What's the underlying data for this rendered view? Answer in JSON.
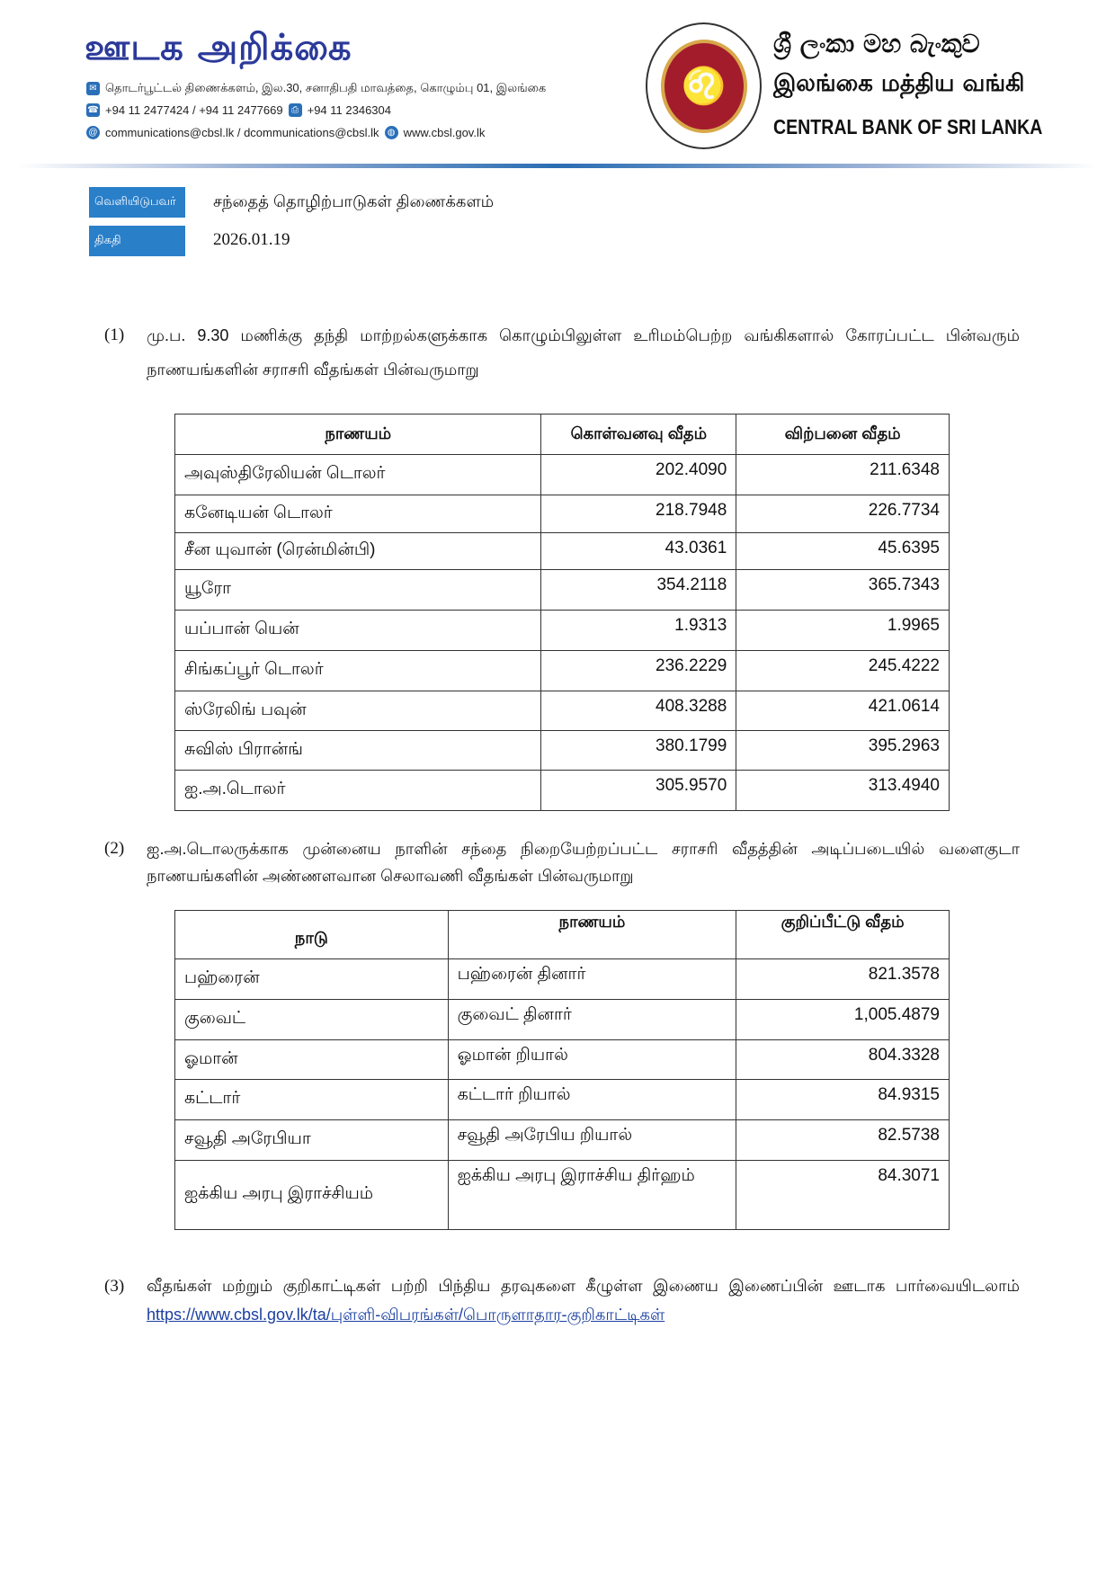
{
  "header": {
    "title": "ஊடக அறிக்கை",
    "address": "தொடர்பூட்டல் திணைக்களம், இல.30, சனாதிபதி மாவத்தை, கொழும்பு 01, இலங்கை",
    "phones": "+94 11 2477424 / +94 11 2477669",
    "fax": "+94 11  2346304",
    "emails": "communications@cbsl.lk / dcommunications@cbsl.lk",
    "website": "www.cbsl.gov.lk",
    "bank_name_sinhala": "ශ්‍රී ලංකා මහ බැංකුව",
    "bank_name_tamil": "இலங்கை மத்திய வங்கி",
    "bank_name_english": "CENTRAL BANK OF SRI LANKA",
    "accent_color": "#2a7fc9"
  },
  "meta": {
    "publisher_label": "வெளியிடுபவர்",
    "publisher_value": "சந்தைத் தொழிற்பாடுகள் திணைக்களம்",
    "date_label": "திகதி",
    "date_value": "2026.01.19"
  },
  "section1": {
    "number": "(1)",
    "text": "மு.ப. 9.30 மணிக்கு தந்தி மாற்றல்களுக்காக கொழும்பிலுள்ள உரிமம்பெற்ற வங்கிகளால் கோரப்பட்ட பின்வரும் நாணயங்களின் சராசரி வீதங்கள் பின்வருமாறு",
    "headers": [
      "நாணயம்",
      "கொள்வனவு வீதம்",
      "விற்பனை வீதம்"
    ],
    "rows": [
      {
        "currency": "அவுஸ்திரேலியன் டொலர்",
        "buy": "202.4090",
        "sell": "211.6348"
      },
      {
        "currency": "கனேடியன் டொலர்",
        "buy": "218.7948",
        "sell": "226.7734"
      },
      {
        "currency": "சீன யுவான் (ரென்மின்பி)",
        "buy": "43.0361",
        "sell": "45.6395"
      },
      {
        "currency": "யூரோ",
        "buy": "354.2118",
        "sell": "365.7343"
      },
      {
        "currency": "யப்பான் யென்",
        "buy": "1.9313",
        "sell": "1.9965"
      },
      {
        "currency": "சிங்கப்பூர் டொலர்",
        "buy": "236.2229",
        "sell": "245.4222"
      },
      {
        "currency": "ஸ்ரேலிங் பவுன்",
        "buy": "408.3288",
        "sell": "421.0614"
      },
      {
        "currency": "சுவிஸ் பிரான்ங்",
        "buy": "380.1799",
        "sell": "395.2963"
      },
      {
        "currency": "ஐ.அ.டொலர்",
        "buy": "305.9570",
        "sell": "313.4940"
      }
    ]
  },
  "section2": {
    "number": "(2)",
    "text": "ஐ.அ.டொலருக்காக முன்னைய நாளின் சந்தை நிறையேற்றப்பட்ட சராசரி வீதத்தின் அடிப்படையில் வளைகுடா நாணயங்களின் அண்ணளவான செலாவணி வீதங்கள் பின்வருமாறு",
    "headers": [
      "நாடு",
      "நாணயம்",
      "குறிப்பீட்டு வீதம்"
    ],
    "rows": [
      {
        "country": "பஹ்ரைன்",
        "currency": "பஹ்ரைன் தினார்",
        "rate": "821.3578"
      },
      {
        "country": "குவைட்",
        "currency": "குவைட் தினார்",
        "rate": "1,005.4879"
      },
      {
        "country": "ஓமான்",
        "currency": "ஓமான் றியால்",
        "rate": "804.3328"
      },
      {
        "country": "கட்டார்",
        "currency": "கட்டார் றியால்",
        "rate": "84.9315"
      },
      {
        "country": "சவூதி அரேபியா",
        "currency": "சவூதி அரேபிய றியால்",
        "rate": "82.5738"
      },
      {
        "country": "ஐக்கிய அரபு இராச்சியம்",
        "currency": "ஐக்கிய அரபு இராச்சிய திர்ஹம்",
        "rate": "84.3071"
      }
    ]
  },
  "section3": {
    "number": "(3)",
    "text": "வீதங்கள் மற்றும் குறிகாட்டிகள் பற்றி பிந்திய தரவுகளை கீழுள்ள இணைய இணைப்பின் ஊடாக பார்வையிடலாம்",
    "link": "https://www.cbsl.gov.lk/ta/புள்ளி-விபரங்கள்/பொருளாதார-குறிகாட்டிகள்"
  }
}
